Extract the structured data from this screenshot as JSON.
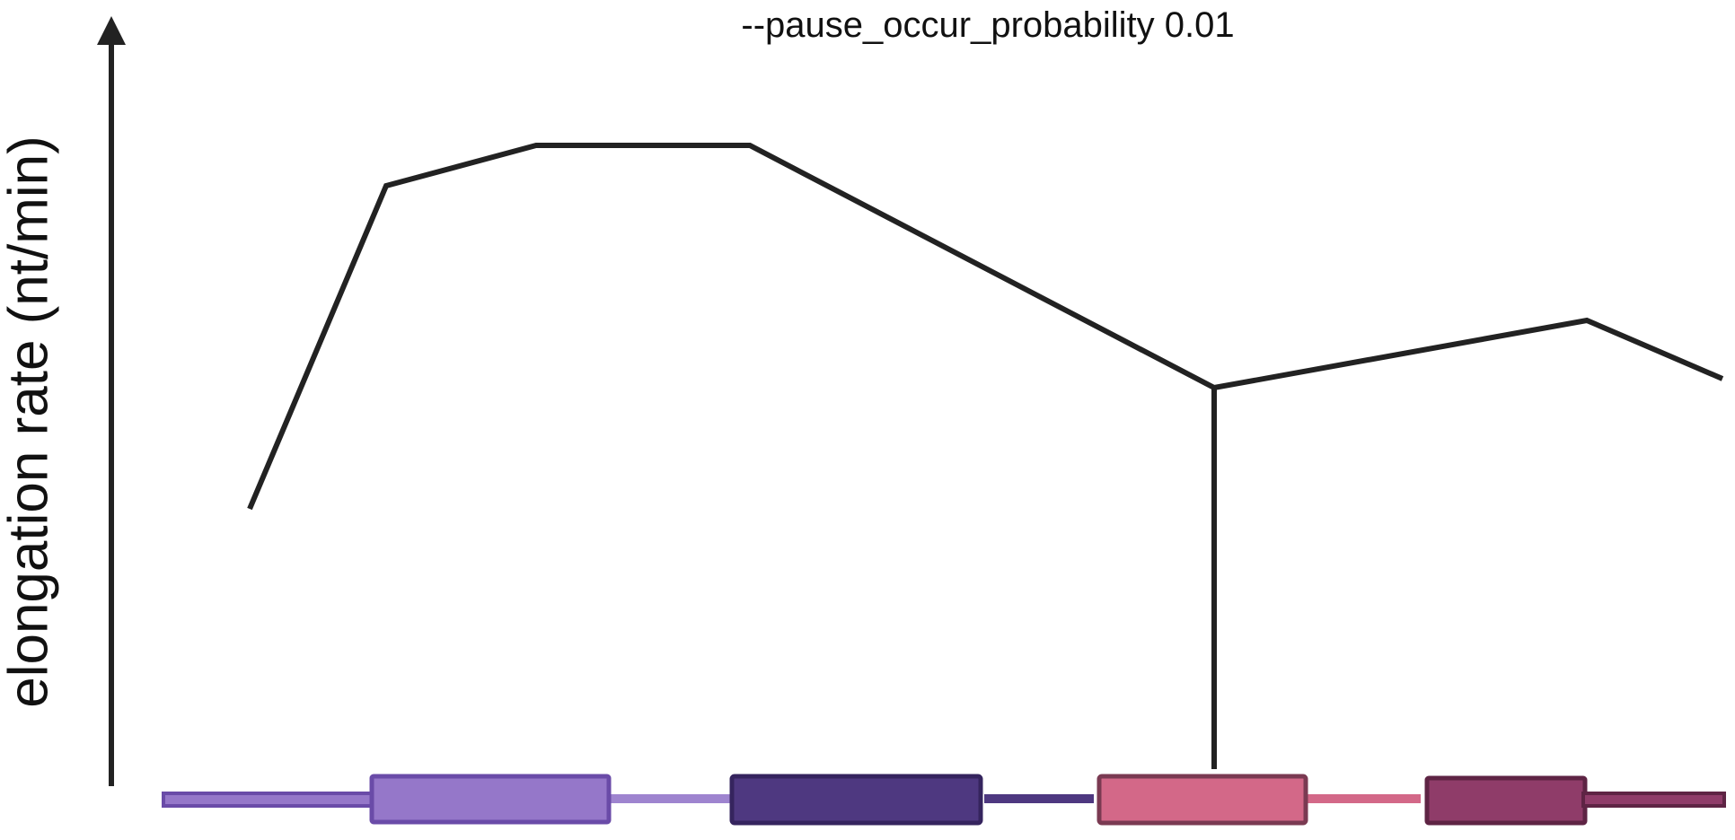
{
  "title": "--pause_occur_probability 0.01",
  "y_axis_label": "elongation rate (nt/min)",
  "colors": {
    "line": "#222222",
    "axis": "#222222",
    "exon1_fill": "#9577c9",
    "exon1_stroke": "#6a4ba8",
    "intron1": "#9e84cf",
    "exon2_fill": "#4e3880",
    "exon2_stroke": "#35245e",
    "intron2": "#4e3880",
    "exon3_fill": "#d36888",
    "exon3_stroke": "#7a3a52",
    "intron3": "#d36888",
    "exon4_fill": "#8f3c69",
    "exon4_stroke": "#5e2444"
  },
  "gene_model": {
    "features": [
      "5-utr",
      "exon-1",
      "intron-1",
      "exon-2",
      "intron-2",
      "exon-3",
      "intron-3",
      "exon-4",
      "3-utr"
    ]
  },
  "rate_profile": {
    "note_segments": [
      "rise",
      "plateau",
      "decline",
      "pause-drop",
      "recovery",
      "final-decline"
    ]
  }
}
